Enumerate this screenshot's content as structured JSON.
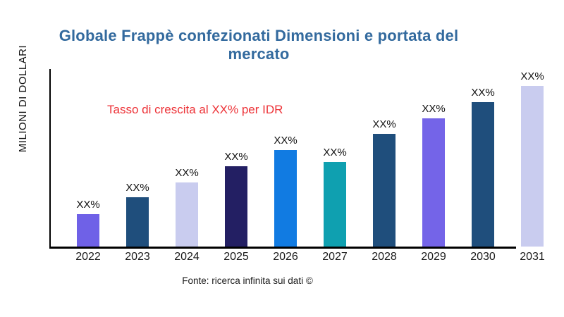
{
  "title": "Globale Frappè confezionati Dimensioni e portata del mercato",
  "title_color": "#336A9E",
  "annotation": {
    "text": "Tasso di crescita al XX% per IDR",
    "color": "#ED3237"
  },
  "footer": "Fonte: ricerca infinita sui dati ©",
  "chart_data": {
    "type": "bar",
    "title": "Globale Frappè confezionati Dimensioni e portata del mercato",
    "xlabel": "",
    "ylabel": "MILIONI DI DOLLARI",
    "categories": [
      "2022",
      "2023",
      "2024",
      "2025",
      "2026",
      "2027",
      "2028",
      "2029",
      "2030",
      "2031"
    ],
    "values": [
      46,
      70,
      91,
      114,
      137,
      120,
      160,
      182,
      205,
      228
    ],
    "values_note": "relative heights; y-axis has no tick labels and every data label is masked as XX%",
    "bar_labels": [
      "XX%",
      "XX%",
      "XX%",
      "XX%",
      "XX%",
      "XX%",
      "XX%",
      "XX%",
      "XX%",
      "XX%"
    ],
    "bar_colors": [
      "#6F61E7",
      "#1F4E7C",
      "#C9CCEF",
      "#231F63",
      "#117BE2",
      "#0FA0B0",
      "#1F4E7C",
      "#7464E8",
      "#1F4E7C",
      "#C9CCEF"
    ],
    "grid": false,
    "legend": false,
    "axis_color": "#000000",
    "annotation_text": "Tasso di crescita al XX% per IDR"
  }
}
